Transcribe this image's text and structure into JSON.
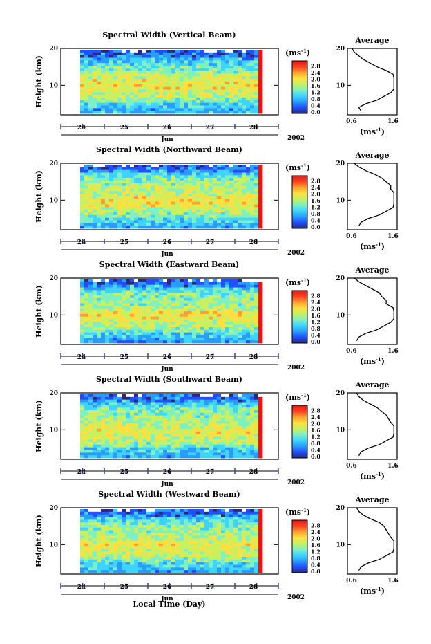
{
  "chart_data": [
    {
      "type": "heatmap",
      "title": "Spectral Width (Vertical Beam)",
      "ylabel": "Height (km)",
      "ylim": [
        2,
        20
      ],
      "yticks": [
        "20",
        "10"
      ],
      "xticks": [
        "24",
        "25",
        "26",
        "27",
        "28"
      ],
      "month_label": "Jun",
      "year_label": "2002",
      "colorbar": {
        "unit": "(ms",
        "unit_exp": "-1",
        "unit_close": ")",
        "ticks": [
          "0.0",
          "0.4",
          "0.8",
          "1.2",
          "1.6",
          "2.0",
          "2.4",
          "2.8"
        ]
      },
      "average": {
        "title": "Average",
        "xlabel": "(ms",
        "xlabel_exp": "-1",
        "xlabel_close": ")",
        "xticks": [
          "0.6",
          "1.6"
        ],
        "yticks": [
          "20",
          "10"
        ],
        "height": [
          3,
          4,
          5,
          6,
          7,
          8,
          9,
          10,
          11,
          12,
          13,
          14,
          15,
          16,
          17,
          18,
          19,
          20
        ],
        "width": [
          0.9,
          0.85,
          1.0,
          1.25,
          1.4,
          1.55,
          1.7,
          1.8,
          1.8,
          1.75,
          1.6,
          1.45,
          1.25,
          1.1,
          0.95,
          0.85,
          0.75,
          0.7
        ]
      }
    },
    {
      "type": "heatmap",
      "title": "Spectral Width (Northward Beam)",
      "ylabel": "Height (km)",
      "ylim": [
        2,
        20
      ],
      "yticks": [
        "20",
        "10"
      ],
      "xticks": [
        "24",
        "25",
        "26",
        "27",
        "28"
      ],
      "month_label": "Jun",
      "year_label": "2002",
      "colorbar": {
        "unit": "(ms",
        "unit_exp": "-1",
        "unit_close": ")",
        "ticks": [
          "0.0",
          "0.4",
          "0.8",
          "1.2",
          "1.6",
          "2.0",
          "2.4",
          "2.8"
        ]
      },
      "average": {
        "title": "Average",
        "xlabel": "(ms",
        "xlabel_exp": "-1",
        "xlabel_close": ")",
        "xticks": [
          "0.6",
          "1.6"
        ],
        "yticks": [
          "20",
          "10"
        ],
        "height": [
          3,
          4,
          5,
          6,
          7,
          8,
          9,
          10,
          11,
          12,
          13,
          14,
          15,
          16,
          17,
          18,
          19,
          20
        ],
        "width": [
          0.85,
          0.9,
          1.05,
          1.3,
          1.45,
          1.6,
          1.75,
          1.8,
          1.75,
          1.65,
          1.55,
          1.55,
          1.45,
          1.35,
          1.2,
          1.0,
          0.85,
          0.75
        ]
      }
    },
    {
      "type": "heatmap",
      "title": "Spectral Width (Eastward Beam)",
      "ylabel": "Height (km)",
      "ylim": [
        2,
        20
      ],
      "yticks": [
        "20",
        "10"
      ],
      "xticks": [
        "24",
        "25",
        "26",
        "27",
        "28"
      ],
      "month_label": "Jun",
      "year_label": "2002",
      "colorbar": {
        "unit": "(ms",
        "unit_exp": "-1",
        "unit_close": ")",
        "ticks": [
          "0.0",
          "0.4",
          "0.8",
          "1.2",
          "1.6",
          "2.0",
          "2.4",
          "2.8"
        ]
      },
      "average": {
        "title": "Average",
        "xlabel": "(ms",
        "xlabel_exp": "-1",
        "xlabel_close": ")",
        "xticks": [
          "0.6",
          "1.6"
        ],
        "yticks": [
          "20",
          "10"
        ],
        "height": [
          3,
          4,
          5,
          6,
          7,
          8,
          9,
          10,
          11,
          12,
          13,
          14,
          15,
          16,
          17,
          18,
          19,
          20
        ],
        "width": [
          0.8,
          0.85,
          1.0,
          1.25,
          1.4,
          1.55,
          1.7,
          1.8,
          1.75,
          1.6,
          1.45,
          1.45,
          1.35,
          1.3,
          1.15,
          1.0,
          0.85,
          0.75
        ]
      }
    },
    {
      "type": "heatmap",
      "title": "Spectral Width (Southward Beam)",
      "ylabel": "Height (km)",
      "ylim": [
        2,
        20
      ],
      "yticks": [
        "20",
        "10"
      ],
      "xticks": [
        "24",
        "25",
        "26",
        "27",
        "28"
      ],
      "month_label": "Jun",
      "year_label": "2002",
      "colorbar": {
        "unit": "(ms",
        "unit_exp": "-1",
        "unit_close": ")",
        "ticks": [
          "0.0",
          "0.4",
          "0.8",
          "1.2",
          "1.6",
          "2.0",
          "2.4",
          "2.8"
        ]
      },
      "average": {
        "title": "Average",
        "xlabel": "(ms",
        "xlabel_exp": "-1",
        "xlabel_close": ")",
        "xticks": [
          "0.6",
          "1.6"
        ],
        "yticks": [
          "20",
          "10"
        ],
        "height": [
          3,
          4,
          5,
          6,
          7,
          8,
          9,
          10,
          11,
          12,
          13,
          14,
          15,
          16,
          17,
          18,
          19,
          20
        ],
        "width": [
          0.85,
          0.9,
          1.05,
          1.3,
          1.45,
          1.6,
          1.7,
          1.75,
          1.7,
          1.55,
          1.5,
          1.45,
          1.35,
          1.25,
          1.1,
          0.95,
          0.85,
          0.8
        ]
      }
    },
    {
      "type": "heatmap",
      "title": "Spectral Width (Westward Beam)",
      "ylabel": "Height (km)",
      "ylim": [
        2,
        20
      ],
      "yticks": [
        "20",
        "10"
      ],
      "xticks": [
        "24",
        "25",
        "26",
        "27",
        "28"
      ],
      "month_label": "Jun",
      "year_label": "2002",
      "colorbar": {
        "unit": "(ms",
        "unit_exp": "-1",
        "unit_close": ")",
        "ticks": [
          "0.0",
          "0.4",
          "0.8",
          "1.2",
          "1.6",
          "2.0",
          "2.4",
          "2.8"
        ]
      },
      "average": {
        "title": "Average",
        "xlabel": "(ms",
        "xlabel_exp": "-1",
        "xlabel_close": ")",
        "xticks": [
          "0.6",
          "1.6"
        ],
        "yticks": [
          "20",
          "10"
        ],
        "height": [
          3,
          4,
          5,
          6,
          7,
          8,
          9,
          10,
          11,
          12,
          13,
          14,
          15,
          16,
          17,
          18,
          19,
          20
        ],
        "width": [
          0.85,
          0.9,
          1.05,
          1.3,
          1.45,
          1.6,
          1.7,
          1.75,
          1.7,
          1.55,
          1.5,
          1.45,
          1.4,
          1.3,
          1.1,
          0.95,
          0.85,
          0.8
        ]
      }
    }
  ],
  "xlabel": "Local Time (Day)"
}
